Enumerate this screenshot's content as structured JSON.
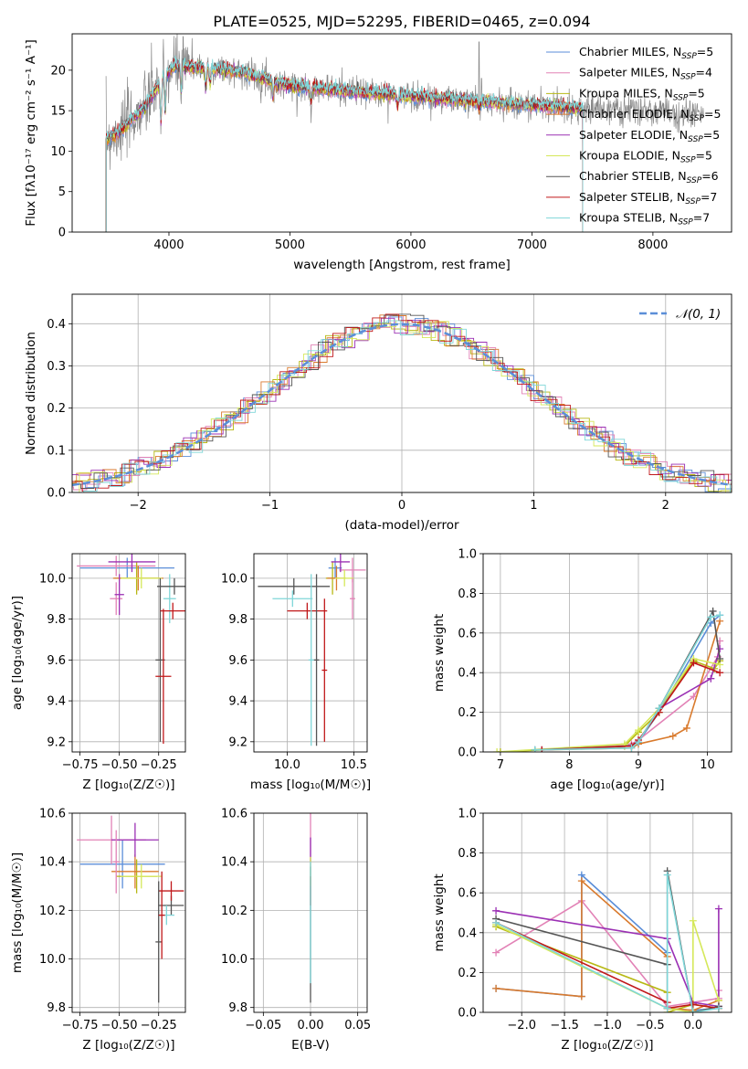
{
  "title": "PLATE=0525, MJD=52295, FIBERID=0465, z=0.094",
  "colors": {
    "s0": "#5b8ed8",
    "s1": "#e282b6",
    "s2": "#b7b814",
    "s3": "#d97a2d",
    "s4": "#9b30b4",
    "s5": "#d5e85a",
    "s6": "#555555",
    "s7": "#c0181a",
    "s8": "#7fd6d8",
    "gauss": "#5b8ed8"
  },
  "chart_data": [
    {
      "id": "spectrum",
      "type": "line",
      "xlabel": "wavelength [Angstrom, rest frame]",
      "ylabel": "Flux [fλ10⁻¹⁷ erg cm⁻² s⁻¹ A⁻¹]",
      "xlim": [
        3200,
        8650
      ],
      "ylim": [
        0,
        24.5
      ],
      "xticks": [
        4000,
        5000,
        6000,
        7000,
        8000
      ],
      "yticks": [
        0,
        5,
        10,
        15,
        20
      ],
      "legend_position": "upper right",
      "legend": [
        {
          "name": "Chabrier MILES",
          "nssp": "5",
          "sub": ""
        },
        {
          "name": "Salpeter MILES",
          "nssp": "4",
          "sub": ""
        },
        {
          "name": "Kroupa MILES",
          "nssp": "5",
          "sub": ""
        },
        {
          "name": "Chabrier ELODIE",
          "nssp": "5",
          "sub": "SSP"
        },
        {
          "name": "Salpeter ELODIE",
          "nssp": "5",
          "sub": "SSP"
        },
        {
          "name": "Kroupa ELODIE",
          "nssp": "5",
          "sub": "SSP"
        },
        {
          "name": "Chabrier STELIB",
          "nssp": "6",
          "sub": "SSP"
        },
        {
          "name": "Salpeter STELIB",
          "nssp": "7",
          "sub": "SSP"
        },
        {
          "name": "Kroupa STELIB",
          "nssp": "7",
          "sub": "SSP"
        }
      ],
      "continuum_x": [
        3480,
        3600,
        3800,
        3950,
        4050,
        4300,
        4600,
        4900,
        5200,
        5600,
        6000,
        6400,
        6800,
        7200,
        7420
      ],
      "continuum_y": [
        11.5,
        12.5,
        15.5,
        19.0,
        20.5,
        20.3,
        19.8,
        18.4,
        17.8,
        17.3,
        16.8,
        16.3,
        15.9,
        15.5,
        15.3
      ],
      "data_range": [
        3480,
        8420
      ],
      "model_range": [
        3480,
        7420
      ]
    },
    {
      "id": "residuals",
      "type": "histogram",
      "xlabel": "(data-model)/error",
      "ylabel": "Normed distribution",
      "xlim": [
        -2.5,
        2.5
      ],
      "ylim": [
        0,
        0.47
      ],
      "xticks": [
        -2,
        -1,
        0,
        1,
        2
      ],
      "yticks": [
        0.0,
        0.1,
        0.2,
        0.3,
        0.4
      ],
      "grid": true,
      "legend_position": "upper right",
      "gaussian_label": "𝒩(0, 1)",
      "bin_width": 0.1
    },
    {
      "id": "age_vs_Z",
      "type": "scatter",
      "xlabel": "Z [log₁₀(Z/Z☉)]",
      "ylabel": "age  [log₁₀(age/yr)]",
      "xlim": [
        -0.8,
        -0.08
      ],
      "ylim": [
        9.15,
        10.12
      ],
      "xticks": [
        -0.75,
        -0.5,
        -0.25
      ],
      "yticks": [
        9.2,
        9.4,
        9.6,
        9.8,
        10.0
      ],
      "grid": true,
      "series": [
        {
          "c": "s0",
          "x": -0.45,
          "xe": 0.3,
          "y": 10.05,
          "ye": 0.05
        },
        {
          "c": "s1",
          "x": -0.52,
          "xe": 0.25,
          "y": 10.06,
          "ye": 0.05
        },
        {
          "c": "s2",
          "x": -0.39,
          "xe": 0.14,
          "y": 10.0,
          "ye": 0.08
        },
        {
          "c": "s3",
          "x": -0.38,
          "xe": 0.16,
          "y": 10.0,
          "ye": 0.06
        },
        {
          "c": "s4",
          "x": -0.42,
          "xe": 0.15,
          "y": 10.08,
          "ye": 0.05
        },
        {
          "c": "s5",
          "x": -0.36,
          "xe": 0.13,
          "y": 10.0,
          "ye": 0.05
        },
        {
          "c": "s6",
          "x": -0.24,
          "xe": 0.03,
          "y": 9.6,
          "ye": 0.4
        },
        {
          "c": "s7",
          "x": -0.22,
          "xe": 0.05,
          "y": 9.52,
          "ye": 0.33
        },
        {
          "c": "s8",
          "x": -0.18,
          "xe": 0.04,
          "y": 9.9,
          "ye": 0.12
        },
        {
          "c": "s6",
          "x": -0.15,
          "xe": 0.11,
          "y": 9.96,
          "ye": 0.04
        },
        {
          "c": "s7",
          "x": -0.16,
          "xe": 0.08,
          "y": 9.84,
          "ye": 0.04
        },
        {
          "c": "s1",
          "x": -0.52,
          "xe": 0.04,
          "y": 9.9,
          "ye": 0.08
        },
        {
          "c": "s4",
          "x": -0.5,
          "xe": 0.03,
          "y": 9.92,
          "ye": 0.1
        }
      ]
    },
    {
      "id": "age_vs_mass",
      "type": "scatter",
      "xlabel": "mass [log₁₀(M/M☉)]",
      "ylabel": "",
      "xlim": [
        9.75,
        10.6
      ],
      "ylim": [
        9.15,
        10.12
      ],
      "xticks": [
        10.0,
        10.5
      ],
      "yticks": [
        9.2,
        9.4,
        9.6,
        9.8,
        10.0
      ],
      "grid": true,
      "series": [
        {
          "c": "s0",
          "x": 10.36,
          "xe": 0.05,
          "y": 10.05,
          "ye": 0.05
        },
        {
          "c": "s1",
          "x": 10.49,
          "xe": 0.1,
          "y": 10.04,
          "ye": 0.06
        },
        {
          "c": "s2",
          "x": 10.34,
          "xe": 0.05,
          "y": 10.0,
          "ye": 0.08
        },
        {
          "c": "s3",
          "x": 10.37,
          "xe": 0.07,
          "y": 10.0,
          "ye": 0.06
        },
        {
          "c": "s4",
          "x": 10.4,
          "xe": 0.07,
          "y": 10.08,
          "ye": 0.05
        },
        {
          "c": "s5",
          "x": 10.43,
          "xe": 0.07,
          "y": 10.0,
          "ye": 0.04
        },
        {
          "c": "s6",
          "x": 10.05,
          "xe": 0.27,
          "y": 9.96,
          "ye": 0.04
        },
        {
          "c": "s7",
          "x": 10.15,
          "xe": 0.15,
          "y": 9.84,
          "ye": 0.04
        },
        {
          "c": "s8",
          "x": 10.04,
          "xe": 0.15,
          "y": 9.9,
          "ye": 0.04
        },
        {
          "c": "s6",
          "x": 10.22,
          "xe": 0.02,
          "y": 9.6,
          "ye": 0.42
        },
        {
          "c": "s7",
          "x": 10.28,
          "xe": 0.02,
          "y": 9.55,
          "ye": 0.35
        },
        {
          "c": "s8",
          "x": 10.18,
          "xe": 0.02,
          "y": 9.6,
          "ye": 0.42
        },
        {
          "c": "s1",
          "x": 10.49,
          "xe": 0.02,
          "y": 9.9,
          "ye": 0.1
        }
      ]
    },
    {
      "id": "weight_vs_age",
      "type": "line",
      "xlabel": "age  [log₁₀(age/yr)]",
      "ylabel": "mass weight",
      "xlim": [
        6.75,
        10.35
      ],
      "ylim": [
        0,
        1.0
      ],
      "xticks": [
        7,
        8,
        9,
        10
      ],
      "yticks": [
        0.0,
        0.2,
        0.4,
        0.6,
        0.8,
        1.0
      ],
      "grid": true,
      "series": [
        {
          "c": "s0",
          "x": [
            7.5,
            8.8,
            9.0,
            9.3,
            10.05,
            10.18
          ],
          "y": [
            0.01,
            0.03,
            0.05,
            0.2,
            0.65,
            0.69
          ]
        },
        {
          "c": "s1",
          "x": [
            7.6,
            8.9,
            9.0,
            9.8,
            10.15,
            10.18
          ],
          "y": [
            0.01,
            0.04,
            0.06,
            0.28,
            0.48,
            0.56
          ]
        },
        {
          "c": "s2",
          "x": [
            7.0,
            8.8,
            9.0,
            9.3,
            9.8,
            10.1,
            10.18
          ],
          "y": [
            0.0,
            0.03,
            0.1,
            0.2,
            0.46,
            0.42,
            0.46
          ]
        },
        {
          "c": "s3",
          "x": [
            7.6,
            8.9,
            9.0,
            9.5,
            9.7,
            10.18
          ],
          "y": [
            0.01,
            0.02,
            0.04,
            0.08,
            0.12,
            0.66
          ]
        },
        {
          "c": "s4",
          "x": [
            7.6,
            8.9,
            9.0,
            9.3,
            10.05,
            10.18
          ],
          "y": [
            0.01,
            0.03,
            0.05,
            0.22,
            0.37,
            0.52
          ]
        },
        {
          "c": "s5",
          "x": [
            6.95,
            8.8,
            9.0,
            9.3,
            9.8,
            10.18
          ],
          "y": [
            0.0,
            0.04,
            0.11,
            0.22,
            0.47,
            0.44
          ]
        },
        {
          "c": "s6",
          "x": [
            7.5,
            8.9,
            9.0,
            9.3,
            10.08,
            10.18
          ],
          "y": [
            0.01,
            0.03,
            0.05,
            0.22,
            0.71,
            0.47
          ]
        },
        {
          "c": "s7",
          "x": [
            7.6,
            8.9,
            9.0,
            9.3,
            9.8,
            10.18
          ],
          "y": [
            0.01,
            0.03,
            0.06,
            0.2,
            0.45,
            0.4
          ]
        },
        {
          "c": "s8",
          "x": [
            7.5,
            8.9,
            9.0,
            9.3,
            10.05,
            10.18
          ],
          "y": [
            0.01,
            0.02,
            0.05,
            0.22,
            0.68,
            0.69
          ]
        }
      ]
    },
    {
      "id": "mass_vs_Z",
      "type": "scatter",
      "xlabel": "Z [log₁₀(Z/Z☉)]",
      "ylabel": "mass [log₁₀(M/M☉)]",
      "xlim": [
        -0.8,
        -0.08
      ],
      "ylim": [
        9.78,
        10.6
      ],
      "xticks": [
        -0.75,
        -0.5,
        -0.25
      ],
      "yticks": [
        9.8,
        10.0,
        10.2,
        10.4,
        10.6
      ],
      "grid": true,
      "series": [
        {
          "c": "s0",
          "x": -0.48,
          "xe": 0.27,
          "y": 10.39,
          "ye": 0.1
        },
        {
          "c": "s1",
          "x": -0.55,
          "xe": 0.22,
          "y": 10.49,
          "ye": 0.1
        },
        {
          "c": "s2",
          "x": -0.39,
          "xe": 0.13,
          "y": 10.34,
          "ye": 0.07
        },
        {
          "c": "s3",
          "x": -0.4,
          "xe": 0.15,
          "y": 10.36,
          "ye": 0.07
        },
        {
          "c": "s4",
          "x": -0.4,
          "xe": 0.15,
          "y": 10.49,
          "ye": 0.07
        },
        {
          "c": "s5",
          "x": -0.36,
          "xe": 0.13,
          "y": 10.34,
          "ye": 0.05
        },
        {
          "c": "s6",
          "x": -0.17,
          "xe": 0.08,
          "y": 10.22,
          "ye": 0.04
        },
        {
          "c": "s7",
          "x": -0.17,
          "xe": 0.08,
          "y": 10.28,
          "ye": 0.04
        },
        {
          "c": "s8",
          "x": -0.2,
          "xe": 0.05,
          "y": 10.18,
          "ye": 0.04
        },
        {
          "c": "s6",
          "x": -0.25,
          "xe": 0.02,
          "y": 10.07,
          "ye": 0.25
        },
        {
          "c": "s7",
          "x": -0.23,
          "xe": 0.02,
          "y": 10.18,
          "ye": 0.18
        },
        {
          "c": "s1",
          "x": -0.52,
          "xe": 0.02,
          "y": 10.4,
          "ye": 0.13
        }
      ]
    },
    {
      "id": "mass_vs_EBV",
      "type": "scatter",
      "xlabel": "E(B-V)",
      "ylabel": "",
      "xlim": [
        -0.06,
        0.06
      ],
      "ylim": [
        9.78,
        10.6
      ],
      "xticks": [
        -0.05,
        0.0,
        0.05
      ],
      "yticks": [
        9.8,
        10.0,
        10.2,
        10.4,
        10.6
      ],
      "grid": true,
      "series": [
        {
          "c": "s6",
          "x": 0.0,
          "xe": 0.0,
          "y": 10.1,
          "ye": 0.28
        },
        {
          "c": "s1",
          "x": 0.0,
          "xe": 0.0,
          "y": 10.45,
          "ye": 0.15
        },
        {
          "c": "s4",
          "x": 0.0,
          "xe": 0.0,
          "y": 10.45,
          "ye": 0.05
        },
        {
          "c": "s7",
          "x": 0.0,
          "xe": 0.0,
          "y": 10.28,
          "ye": 0.06
        },
        {
          "c": "s5",
          "x": 0.0,
          "xe": 0.0,
          "y": 10.36,
          "ye": 0.06
        },
        {
          "c": "s8",
          "x": 0.0,
          "xe": 0.0,
          "y": 10.15,
          "ye": 0.25
        }
      ]
    },
    {
      "id": "weight_vs_Z",
      "type": "line",
      "xlabel": "Z [log₁₀(Z/Z☉)]",
      "ylabel": "mass weight",
      "xlim": [
        -2.45,
        0.45
      ],
      "ylim": [
        0,
        1.0
      ],
      "xticks": [
        -2.0,
        -1.5,
        -1.0,
        -0.5,
        0.0
      ],
      "xtick_labels": [
        "−2.0",
        "−1.5",
        "−1.0",
        "−0.5",
        "0.0"
      ],
      "yticks": [
        0.0,
        0.2,
        0.4,
        0.6,
        0.8,
        1.0
      ],
      "grid": true,
      "series": [
        {
          "c": "s0",
          "x": [
            -2.3,
            -1.3,
            -1.3,
            -0.3,
            -0.3,
            0.0,
            0.3
          ],
          "y": [
            0.12,
            0.08,
            0.69,
            0.3,
            0.02,
            0.01,
            0.02
          ]
        },
        {
          "c": "s1",
          "x": [
            -2.3,
            -1.3,
            -0.3,
            0.3,
            0.3
          ],
          "y": [
            0.3,
            0.56,
            0.03,
            0.07,
            0.11
          ]
        },
        {
          "c": "s2",
          "x": [
            -2.3,
            -0.3,
            -0.3,
            0.0,
            0.3
          ],
          "y": [
            0.43,
            0.1,
            0.0,
            0.04,
            0.02
          ]
        },
        {
          "c": "s3",
          "x": [
            -2.3,
            -1.3,
            -1.3,
            -0.3,
            -0.3,
            0.0,
            0.3
          ],
          "y": [
            0.12,
            0.08,
            0.66,
            0.28,
            0.02,
            0.01,
            0.06
          ]
        },
        {
          "c": "s4",
          "x": [
            -2.3,
            -0.3,
            0.0,
            0.3,
            0.3
          ],
          "y": [
            0.51,
            0.37,
            0.05,
            0.03,
            0.52
          ]
        },
        {
          "c": "s5",
          "x": [
            -2.3,
            -0.3,
            0.0,
            0.0,
            0.3
          ],
          "y": [
            0.44,
            0.02,
            0.0,
            0.46,
            0.06
          ]
        },
        {
          "c": "s6",
          "x": [
            -2.3,
            -0.3,
            -0.3,
            0.0,
            0.3
          ],
          "y": [
            0.47,
            0.24,
            0.71,
            0.0,
            0.03
          ]
        },
        {
          "c": "s7",
          "x": [
            -2.3,
            -0.3,
            -0.3,
            0.0,
            0.3
          ],
          "y": [
            0.45,
            0.05,
            0.02,
            0.04,
            0.02
          ]
        },
        {
          "c": "s8",
          "x": [
            -2.3,
            -0.3,
            -0.3,
            0.0,
            0.3
          ],
          "y": [
            0.45,
            0.02,
            0.69,
            0.0,
            0.02
          ]
        }
      ]
    }
  ]
}
